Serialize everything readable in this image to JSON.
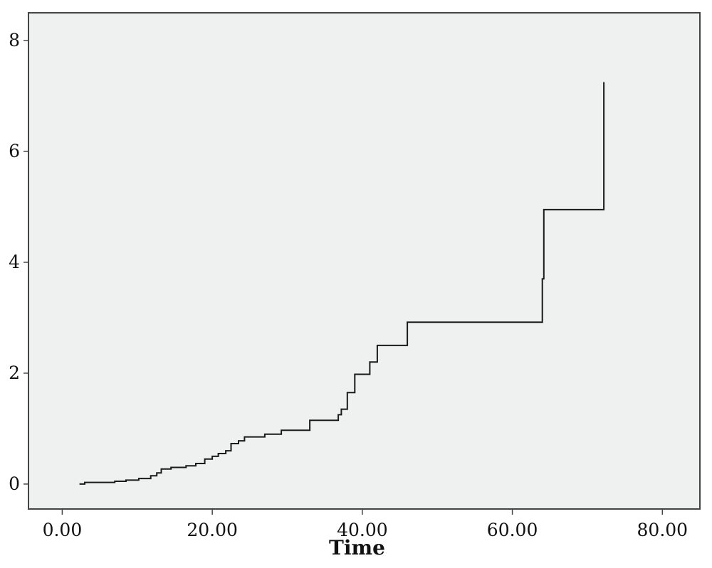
{
  "chart_data": {
    "type": "line",
    "step": true,
    "title": "",
    "xlabel": "Time",
    "ylabel": "",
    "xlim": [
      -4.5,
      85
    ],
    "ylim": [
      -0.45,
      8.5
    ],
    "xticks": [
      0,
      20,
      40,
      60,
      80
    ],
    "xtick_labels": [
      "0.00",
      "20.00",
      "40.00",
      "60.00",
      "80.00"
    ],
    "yticks": [
      0,
      2,
      4,
      6,
      8
    ],
    "ytick_labels": [
      "0",
      "2",
      "4",
      "6",
      "8"
    ],
    "grid": false,
    "legend": "none",
    "colors": {
      "plot_background": "#eef1ef",
      "line": "#1a1a1a",
      "frame": "#444444"
    },
    "series": [
      {
        "x": [
          2.3,
          3.0,
          7.0,
          8.5,
          10.2,
          11.8,
          12.6,
          13.2,
          14.5,
          16.5,
          17.8,
          19.0,
          20.0,
          20.8,
          21.8,
          22.5,
          23.5,
          24.3,
          27.0,
          29.2,
          33.0,
          36.8,
          37.2,
          38.0,
          39.0,
          41.0,
          42.0,
          46.0,
          64.0,
          64.2,
          72.2
        ],
        "y": [
          0.0,
          0.03,
          0.05,
          0.07,
          0.1,
          0.15,
          0.2,
          0.27,
          0.3,
          0.33,
          0.37,
          0.45,
          0.5,
          0.55,
          0.6,
          0.73,
          0.78,
          0.85,
          0.9,
          0.97,
          1.15,
          1.25,
          1.35,
          1.65,
          1.98,
          2.2,
          2.5,
          2.92,
          3.7,
          4.95,
          7.25
        ]
      }
    ]
  }
}
